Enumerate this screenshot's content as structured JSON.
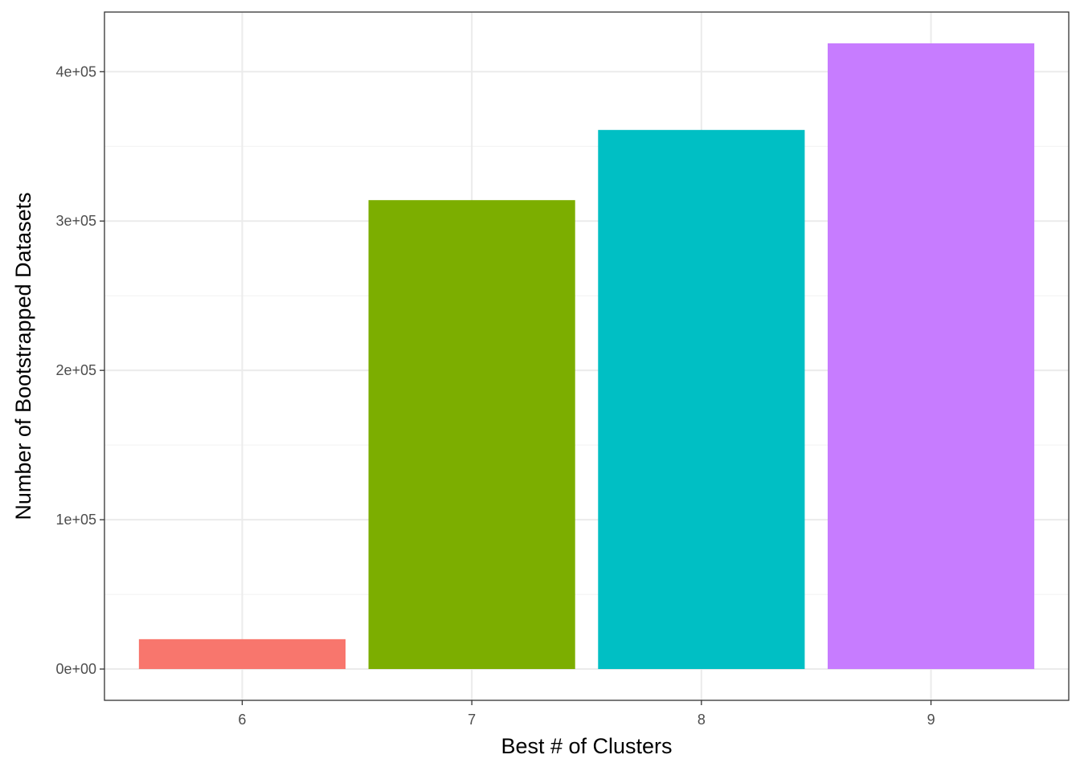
{
  "chart_data": {
    "type": "bar",
    "xlabel": "Best # of Clusters",
    "ylabel": "Number of Bootstrapped Datasets",
    "categories": [
      "6",
      "7",
      "8",
      "9"
    ],
    "values": [
      20000,
      314000,
      361000,
      419000
    ],
    "colors": [
      "#F8766D",
      "#7CAE00",
      "#00BFC4",
      "#C77CFF"
    ],
    "ylim": [
      -20950,
      439950
    ],
    "yticks": [
      0,
      100000,
      200000,
      300000,
      400000
    ],
    "ytick_labels": [
      "0e+00",
      "1e+05",
      "2e+05",
      "3e+05",
      "4e+05"
    ],
    "grid": true,
    "theme": "bw"
  }
}
